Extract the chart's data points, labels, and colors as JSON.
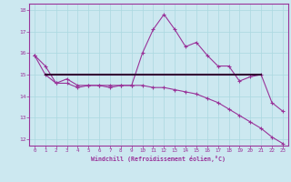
{
  "xlabel": "Windchill (Refroidissement éolien,°C)",
  "bg_color": "#cce8f0",
  "line_color": "#993399",
  "dark_line_color": "#330033",
  "grid_color": "#aad8e0",
  "xlim": [
    -0.5,
    23.5
  ],
  "ylim": [
    11.7,
    18.3
  ],
  "yticks": [
    12,
    13,
    14,
    15,
    16,
    17,
    18
  ],
  "xticks": [
    0,
    1,
    2,
    3,
    4,
    5,
    6,
    7,
    8,
    9,
    10,
    11,
    12,
    13,
    14,
    15,
    16,
    17,
    18,
    19,
    20,
    21,
    22,
    23
  ],
  "curve1_x": [
    0,
    1,
    2,
    3,
    4,
    5,
    6,
    7,
    8,
    9,
    10,
    11,
    12,
    13,
    14,
    15,
    16,
    17,
    18,
    19,
    20,
    21,
    22,
    23
  ],
  "curve1_y": [
    15.9,
    15.4,
    14.6,
    14.8,
    14.5,
    14.5,
    14.5,
    14.5,
    14.5,
    14.5,
    16.0,
    17.1,
    17.8,
    17.1,
    16.3,
    16.5,
    15.9,
    15.4,
    15.4,
    14.7,
    14.9,
    15.0,
    13.7,
    13.3
  ],
  "curve2_x": [
    1,
    21
  ],
  "curve2_y": [
    15.0,
    15.0
  ],
  "curve3_x": [
    0,
    1,
    2,
    3,
    4,
    5,
    6,
    7,
    8,
    9,
    10,
    11,
    12,
    13,
    14,
    15,
    16,
    17,
    18,
    19,
    20,
    21,
    22,
    23
  ],
  "curve3_y": [
    15.9,
    15.0,
    14.6,
    14.6,
    14.4,
    14.5,
    14.5,
    14.4,
    14.5,
    14.5,
    14.5,
    14.4,
    14.4,
    14.3,
    14.2,
    14.1,
    13.9,
    13.7,
    13.4,
    13.1,
    12.8,
    12.5,
    12.1,
    11.8
  ]
}
